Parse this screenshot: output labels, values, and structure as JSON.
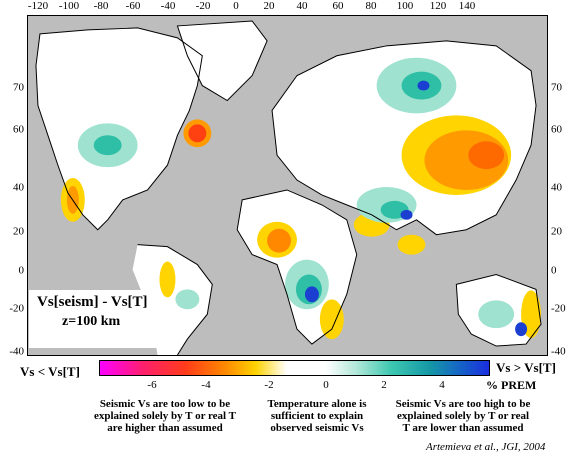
{
  "map": {
    "title": "Vs[seism] - Vs[T]",
    "subtitle": "z=100 km",
    "lon_ticks": [
      "-120",
      "-100",
      "-80",
      "-60",
      "-40",
      "-20",
      "0",
      "20",
      "40",
      "60",
      "80",
      "100",
      "120",
      "140"
    ],
    "lat_ticks_left": [
      "70",
      "60",
      "40",
      "20",
      "0",
      "-20",
      "-40"
    ],
    "lat_ticks_right": [
      "70",
      "60",
      "40",
      "20",
      "0",
      "-20",
      "-40"
    ],
    "colors": {
      "ocean": "#bdbdbd",
      "neutral": "#ffffff",
      "negative_strong": "#ff4010",
      "negative_mid": "#ff9a00",
      "negative_weak": "#ffd400",
      "positive_weak": "#9fe2cf",
      "positive_mid": "#2fbfa6",
      "positive_strong": "#1b3fd0",
      "coastline": "#000000"
    }
  },
  "colorbar": {
    "left_label": "Vs < Vs[T]",
    "right_label": "Vs > Vs[T]",
    "unit": "% PREM",
    "ticks": [
      "-6",
      "-4",
      "-2",
      "0",
      "2",
      "4"
    ]
  },
  "explanations": {
    "left": "Seismic Vs are too low to be\nexplained solely by T or real T\nare higher than assumed",
    "middle": "Temperature alone is\nsufficient to explain\nobserved seismic Vs",
    "right": "Seismic Vs are too high to be\nexplained solely by T or real\nT are lower than assumed"
  },
  "credit": "Artemieva et al., JGI, 2004"
}
